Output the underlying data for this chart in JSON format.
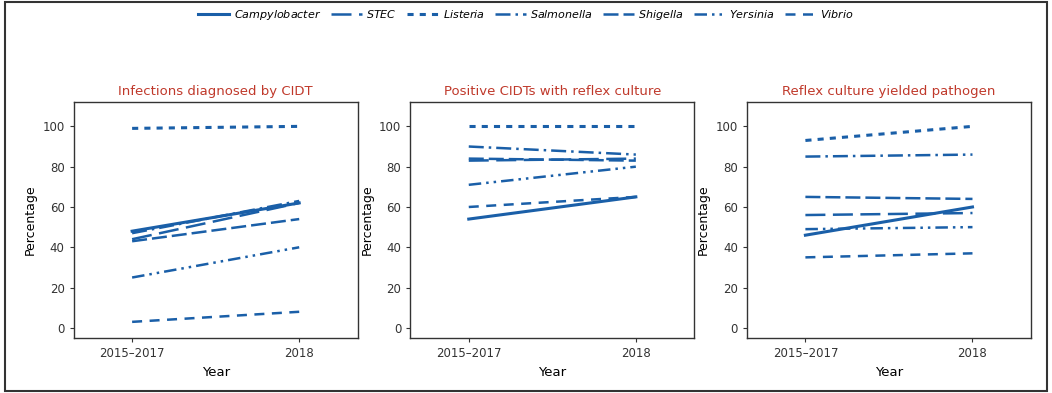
{
  "line_color": "#1a5fa8",
  "title_color": "#c0392b",
  "background_color": "#ffffff",
  "border_color": "#333333",
  "x_ticks": [
    0,
    1
  ],
  "x_tick_labels": [
    "2015–2017",
    "2018"
  ],
  "x_label": "Year",
  "y_label": "Percentage",
  "y_ticks": [
    0,
    20,
    40,
    60,
    80,
    100
  ],
  "y_lim": [
    -5,
    112
  ],
  "pathogens": [
    "Campylobacter",
    "STEC",
    "Listeria",
    "Salmonella",
    "Shigella",
    "Yersinia",
    "Vibrio"
  ],
  "chart1_title": "Infections diagnosed by CIDT",
  "chart1_data": {
    "Campylobacter": [
      48,
      62
    ],
    "STEC": [
      44,
      62
    ],
    "Listeria": [
      99,
      100
    ],
    "Salmonella": [
      47,
      63
    ],
    "Shigella": [
      43,
      54
    ],
    "Yersinia": [
      25,
      40
    ],
    "Vibrio": [
      3,
      8
    ]
  },
  "chart2_title": "Positive CIDTs with reflex culture",
  "chart2_data": {
    "Campylobacter": [
      54,
      65
    ],
    "STEC": [
      83,
      84
    ],
    "Listeria": [
      100,
      100
    ],
    "Salmonella": [
      90,
      86
    ],
    "Shigella": [
      84,
      83
    ],
    "Yersinia": [
      71,
      80
    ],
    "Vibrio": [
      60,
      65
    ]
  },
  "chart3_title": "Reflex culture yielded pathogen",
  "chart3_data": {
    "Campylobacter": [
      46,
      60
    ],
    "STEC": [
      56,
      57
    ],
    "Listeria": [
      93,
      100
    ],
    "Salmonella": [
      85,
      86
    ],
    "Shigella": [
      65,
      64
    ],
    "Yersinia": [
      49,
      50
    ],
    "Vibrio": [
      35,
      37
    ]
  }
}
